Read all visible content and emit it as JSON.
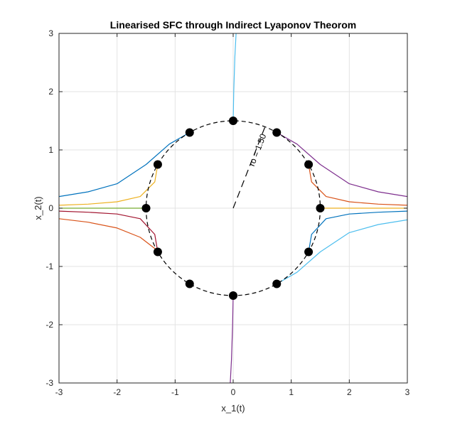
{
  "chart_data": {
    "type": "line",
    "title": "Linearised SFC through Indirect Lyaponov Theorom",
    "xlabel": "x_1(t)",
    "ylabel": "x_2(t)",
    "xlim": [
      -3,
      3
    ],
    "ylim": [
      -3,
      3
    ],
    "xticks": [
      -3,
      -2,
      -1,
      0,
      1,
      2,
      3
    ],
    "yticks": [
      -3,
      -2,
      -1,
      0,
      1,
      2,
      3
    ],
    "xtick_labels": [
      "-3",
      "-2",
      "-1",
      "0",
      "1",
      "2",
      "3"
    ],
    "ytick_labels": [
      "-3",
      "-2",
      "-1",
      "0",
      "1",
      "2",
      "3"
    ],
    "grid": true,
    "circle": {
      "center": [
        0,
        0
      ],
      "radius": 1.5,
      "style": "dashed"
    },
    "radius_annotation": {
      "text": "ro = 1.50",
      "from": [
        0,
        0
      ],
      "to": [
        0.55,
        1.4
      ]
    },
    "initial_points": [
      [
        1.5,
        0
      ],
      [
        1.299,
        0.75
      ],
      [
        0.75,
        1.299
      ],
      [
        0,
        1.5
      ],
      [
        -0.75,
        1.299
      ],
      [
        -1.299,
        0.75
      ],
      [
        -1.5,
        0
      ],
      [
        -1.299,
        -0.75
      ],
      [
        -0.75,
        -1.299
      ],
      [
        0,
        -1.5
      ],
      [
        0.75,
        -1.299
      ],
      [
        1.299,
        -0.75
      ]
    ],
    "series": [
      {
        "color": "#D95319",
        "x": [
          -3,
          -2.5,
          -2,
          -1.6,
          -1.3,
          -1.299
        ],
        "y": [
          -0.18,
          -0.24,
          -0.34,
          -0.5,
          -0.73,
          -0.75
        ]
      },
      {
        "color": "#A2142F",
        "x": [
          -3,
          -2.5,
          -2,
          -1.6,
          -1.35,
          -1.299
        ],
        "y": [
          -0.05,
          -0.07,
          -0.1,
          -0.18,
          -0.45,
          -0.75
        ]
      },
      {
        "color": "#EDB120",
        "x": [
          -3,
          -2.5,
          -2,
          -1.6,
          -1.35,
          -1.299
        ],
        "y": [
          0.05,
          0.07,
          0.11,
          0.2,
          0.45,
          0.75
        ]
      },
      {
        "color": "#0072BD",
        "x": [
          -3,
          -2.5,
          -2,
          -1.5,
          -1.1,
          -0.75
        ],
        "y": [
          0.2,
          0.28,
          0.42,
          0.75,
          1.1,
          1.299
        ]
      },
      {
        "color": "#7E2F8E",
        "x": [
          0.75,
          1.1,
          1.5,
          2,
          2.5,
          3
        ],
        "y": [
          1.299,
          1.1,
          0.75,
          0.42,
          0.28,
          0.2
        ]
      },
      {
        "color": "#D95319",
        "x": [
          1.299,
          1.35,
          1.6,
          2,
          2.5,
          3
        ],
        "y": [
          0.75,
          0.45,
          0.2,
          0.11,
          0.07,
          0.05
        ]
      },
      {
        "color": "#EDB120",
        "x": [
          1.5,
          2,
          2.5,
          3
        ],
        "y": [
          0,
          0,
          0,
          0
        ]
      },
      {
        "color": "#0072BD",
        "x": [
          1.299,
          1.35,
          1.6,
          2,
          2.5,
          3
        ],
        "y": [
          -0.75,
          -0.45,
          -0.18,
          -0.1,
          -0.07,
          -0.05
        ]
      },
      {
        "color": "#4DBEEE",
        "x": [
          0.75,
          1.1,
          1.5,
          2,
          2.5,
          3
        ],
        "y": [
          -1.299,
          -1.1,
          -0.75,
          -0.42,
          -0.28,
          -0.2
        ]
      },
      {
        "color": "#4DBEEE",
        "x": [
          0,
          0.01,
          0.03,
          0.05
        ],
        "y": [
          1.5,
          2,
          2.6,
          3
        ]
      },
      {
        "color": "#7E2F8E",
        "x": [
          0,
          -0.01,
          -0.03,
          -0.05
        ],
        "y": [
          -1.5,
          -2,
          -2.6,
          -3
        ]
      },
      {
        "color": "#77AC30",
        "x": [
          -1.5,
          -1.8,
          -2.3,
          -3
        ],
        "y": [
          0,
          0,
          0,
          0
        ]
      }
    ]
  }
}
